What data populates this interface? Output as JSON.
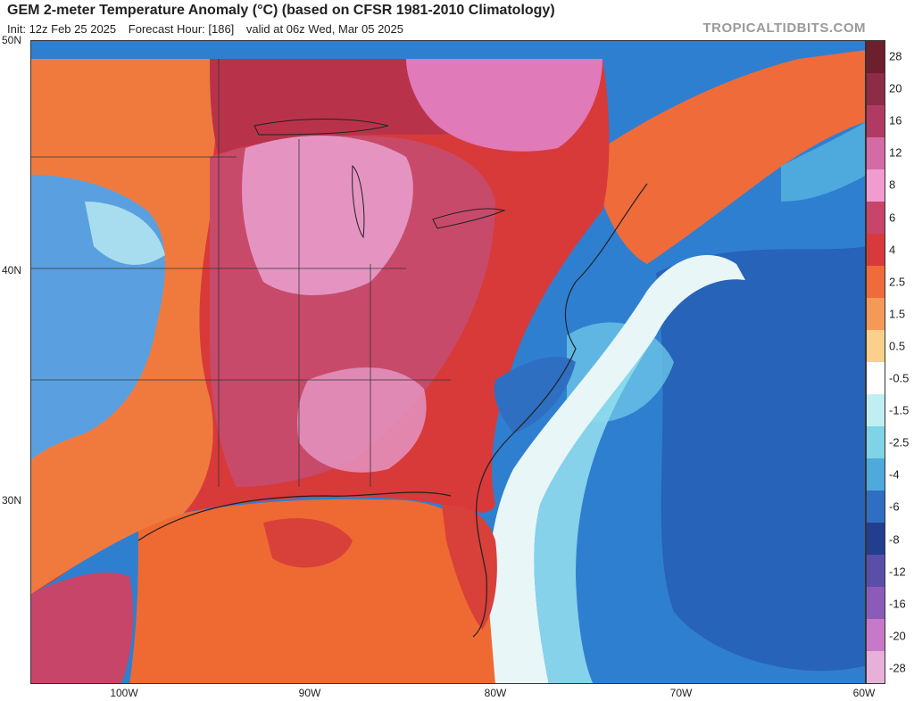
{
  "header": {
    "title": "GEM 2-meter Temperature Anomaly (°C) (based on CFSR 1981-2010 Climatology)",
    "init": "Init: 12z Feb 25 2025",
    "forecast_hour": "Forecast Hour: [186]",
    "valid": "valid at 06z Wed, Mar 05 2025",
    "brand": "TROPICALTIDBITS.COM"
  },
  "axes": {
    "lat_labels": [
      "50N",
      "40N",
      "30N"
    ],
    "lon_labels": [
      "100W",
      "90W",
      "80W",
      "70W",
      "60W"
    ]
  },
  "colorbar": {
    "labels": [
      "28",
      "20",
      "16",
      "12",
      "8",
      "6",
      "4",
      "2.5",
      "1.5",
      "0.5",
      "-0.5",
      "-1.5",
      "-2.5",
      "-4",
      "-6",
      "-8",
      "-12",
      "-16",
      "-20",
      "-28"
    ],
    "colors": [
      "#6e1f2e",
      "#8e2b45",
      "#b13a62",
      "#d46aa6",
      "#f29bd0",
      "#c8456a",
      "#d83a3a",
      "#ef6b3a",
      "#f59a56",
      "#fbd08a",
      "#ffffff",
      "#bfeff2",
      "#7fd3e6",
      "#4ea9dc",
      "#2f6fc2",
      "#243e8f",
      "#5a4fa8",
      "#8a5cb8",
      "#c878c8",
      "#e8b0d8"
    ]
  },
  "map": {
    "colors": {
      "ocean_cool": "#2f7fd0",
      "ocean_cold": "#2559b0",
      "shelf_white": "#e8f6f8",
      "gulf_warm": "#ef6a32",
      "land_hot": "#c84a6a",
      "land_pink": "#e594c2",
      "land_red": "#d8403a",
      "land_orange": "#f07a3e",
      "west_cool": "#5aa0e0",
      "canada_red": "#b8334a",
      "quebec_pink": "#e07ab8"
    }
  }
}
